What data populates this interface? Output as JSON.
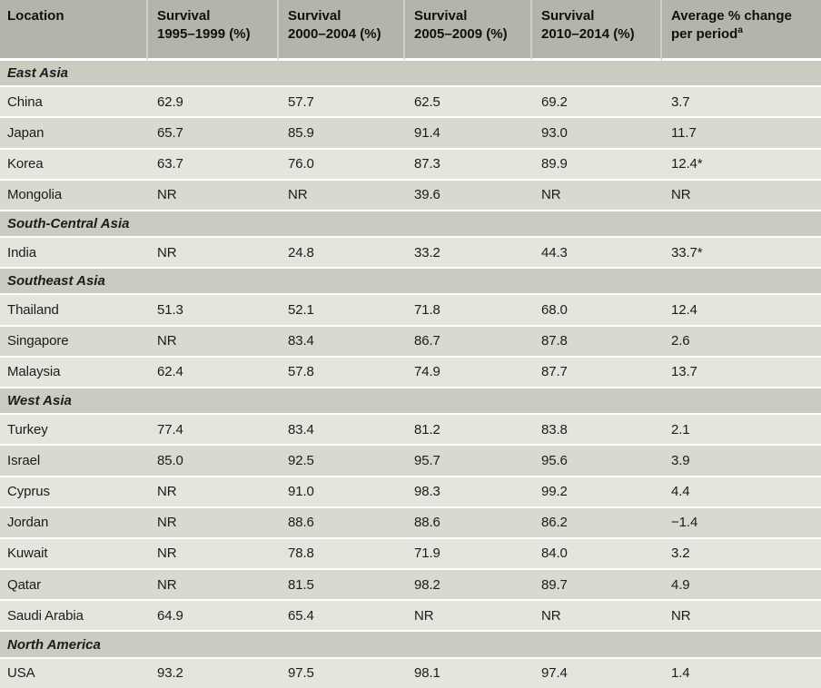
{
  "colors": {
    "header_bg": "#b3b4aa",
    "section_bg": "#cbccc1",
    "row_light": "#e4e5dc",
    "row_dark": "#d8d9cf",
    "separator": "#ffffff",
    "header_text": "#101010",
    "text": "#1c1c1c"
  },
  "table": {
    "columns": [
      {
        "line1": "Location",
        "line2": "",
        "footnote": ""
      },
      {
        "line1": "Survival",
        "line2": "1995–1999 (%)",
        "footnote": ""
      },
      {
        "line1": "Survival",
        "line2": "2000–2004 (%)",
        "footnote": ""
      },
      {
        "line1": "Survival",
        "line2": "2005–2009 (%)",
        "footnote": ""
      },
      {
        "line1": "Survival",
        "line2": "2010–2014 (%)",
        "footnote": ""
      },
      {
        "line1": "Average % change",
        "line2": "per period",
        "footnote": "a"
      }
    ],
    "sections": [
      {
        "name": "East Asia",
        "rows": [
          {
            "location": "China",
            "values": [
              "62.9",
              "57.7",
              "62.5",
              "69.2",
              "3.7"
            ]
          },
          {
            "location": "Japan",
            "values": [
              "65.7",
              "85.9",
              "91.4",
              "93.0",
              "11.7"
            ]
          },
          {
            "location": "Korea",
            "values": [
              "63.7",
              "76.0",
              "87.3",
              "89.9",
              "12.4*"
            ]
          },
          {
            "location": "Mongolia",
            "values": [
              "NR",
              "NR",
              "39.6",
              "NR",
              "NR"
            ]
          }
        ]
      },
      {
        "name": "South-Central Asia",
        "rows": [
          {
            "location": "India",
            "values": [
              "NR",
              "24.8",
              "33.2",
              "44.3",
              "33.7*"
            ]
          }
        ]
      },
      {
        "name": "Southeast Asia",
        "rows": [
          {
            "location": "Thailand",
            "values": [
              "51.3",
              "52.1",
              "71.8",
              "68.0",
              "12.4"
            ]
          },
          {
            "location": "Singapore",
            "values": [
              "NR",
              "83.4",
              "86.7",
              "87.8",
              "2.6"
            ]
          },
          {
            "location": "Malaysia",
            "values": [
              "62.4",
              "57.8",
              "74.9",
              "87.7",
              "13.7"
            ]
          }
        ]
      },
      {
        "name": "West Asia",
        "rows": [
          {
            "location": "Turkey",
            "values": [
              "77.4",
              "83.4",
              "81.2",
              "83.8",
              "2.1"
            ]
          },
          {
            "location": "Israel",
            "values": [
              "85.0",
              "92.5",
              "95.7",
              "95.6",
              "3.9"
            ]
          },
          {
            "location": "Cyprus",
            "values": [
              "NR",
              "91.0",
              "98.3",
              "99.2",
              "4.4"
            ]
          },
          {
            "location": "Jordan",
            "values": [
              "NR",
              "88.6",
              "88.6",
              "86.2",
              "−1.4"
            ]
          },
          {
            "location": "Kuwait",
            "values": [
              "NR",
              "78.8",
              "71.9",
              "84.0",
              "3.2"
            ]
          },
          {
            "location": "Qatar",
            "values": [
              "NR",
              "81.5",
              "98.2",
              "89.7",
              "4.9"
            ]
          },
          {
            "location": "Saudi Arabia",
            "values": [
              "64.9",
              "65.4",
              "NR",
              "NR",
              "NR"
            ]
          }
        ]
      },
      {
        "name": "North America",
        "rows": [
          {
            "location": "USA",
            "values": [
              "93.2",
              "97.5",
              "98.1",
              "97.4",
              "1.4"
            ]
          }
        ]
      }
    ]
  }
}
